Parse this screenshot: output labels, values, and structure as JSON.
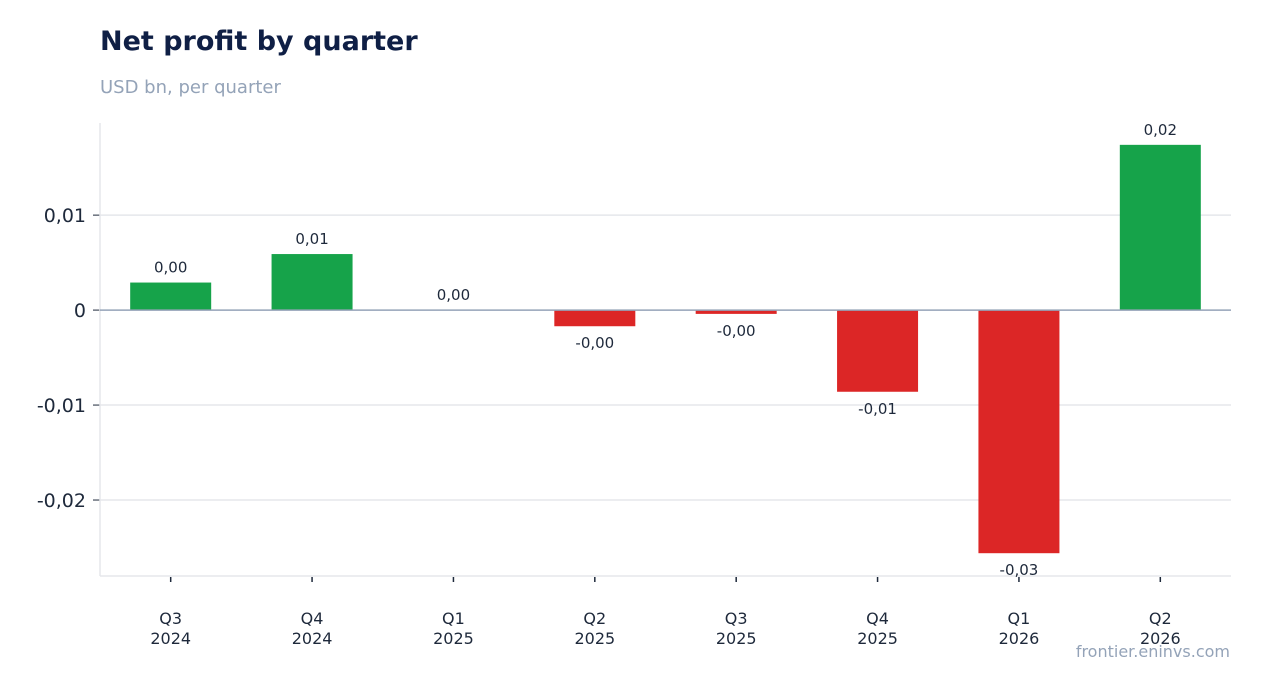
{
  "header": {
    "title": "Net profit by quarter",
    "subtitle": "USD bn, per quarter"
  },
  "footer": {
    "source": "frontier.eninvs.com"
  },
  "chart_data": {
    "type": "bar",
    "categories": [
      [
        "Q3",
        "2024"
      ],
      [
        "Q4",
        "2024"
      ],
      [
        "Q1",
        "2025"
      ],
      [
        "Q2",
        "2025"
      ],
      [
        "Q3",
        "2025"
      ],
      [
        "Q4",
        "2025"
      ],
      [
        "Q1",
        "2026"
      ],
      [
        "Q2",
        "2026"
      ]
    ],
    "values": [
      0.0029,
      0.0059,
      0.0,
      -0.0017,
      -0.0004,
      -0.0086,
      -0.0256,
      0.0174
    ],
    "data_labels": [
      "0,00",
      "0,01",
      "0,00",
      "-0,00",
      "-0,00",
      "-0,01",
      "-0,03",
      "0,02"
    ],
    "yticks": [
      0.01,
      0,
      -0.01,
      -0.02
    ],
    "ytick_labels": [
      "0,01",
      "0",
      "-0,01",
      "-0,02"
    ],
    "ylim": [
      -0.028,
      0.0197
    ],
    "grid": true,
    "colors": {
      "positive": "#16a34a",
      "negative": "#dc2626",
      "zero_line": "#94a3b8",
      "grid": "#e5e7eb"
    }
  }
}
